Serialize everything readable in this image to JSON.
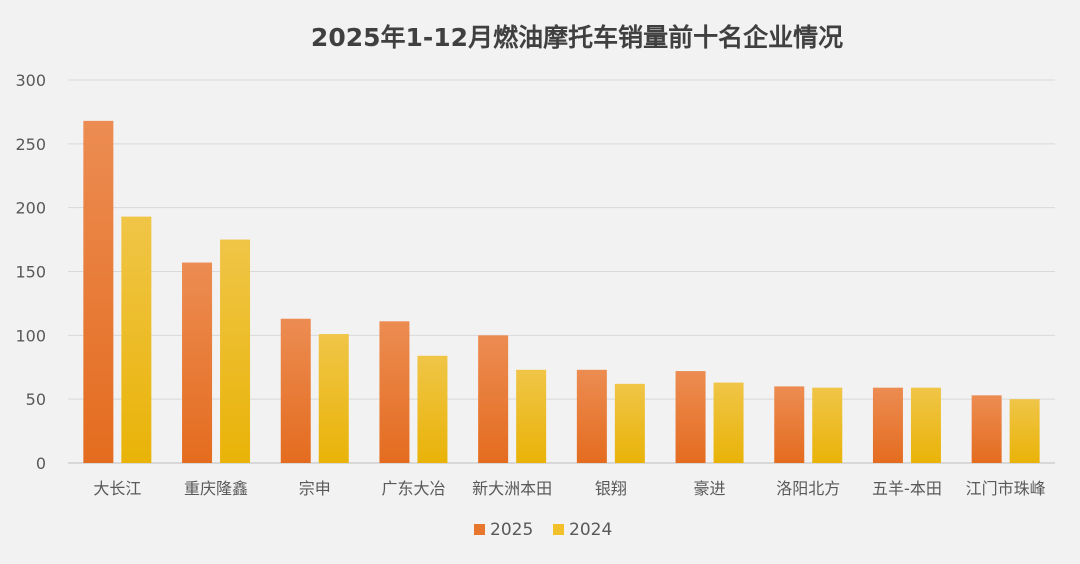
{
  "chart_data": {
    "type": "bar",
    "title": "2025年1-12月燃油摩托车销量前十名企业情况",
    "xlabel": "",
    "ylabel": "",
    "ylim": [
      0,
      300
    ],
    "yticks": [
      0,
      50,
      100,
      150,
      200,
      250,
      300
    ],
    "grid": true,
    "legend_position": "bottom",
    "categories": [
      "大长江",
      "重庆隆鑫",
      "宗申",
      "广东大冶",
      "新大洲本田",
      "银翔",
      "豪进",
      "洛阳北方",
      "五羊-本田",
      "江门市珠峰"
    ],
    "series": [
      {
        "name": "2025",
        "color": "#e8772e",
        "values": [
          268,
          157,
          113,
          111,
          100,
          73,
          72,
          60,
          59,
          53
        ]
      },
      {
        "name": "2024",
        "color": "#f1c02a",
        "values": [
          193,
          175,
          101,
          84,
          73,
          62,
          63,
          59,
          59,
          50
        ]
      }
    ]
  }
}
